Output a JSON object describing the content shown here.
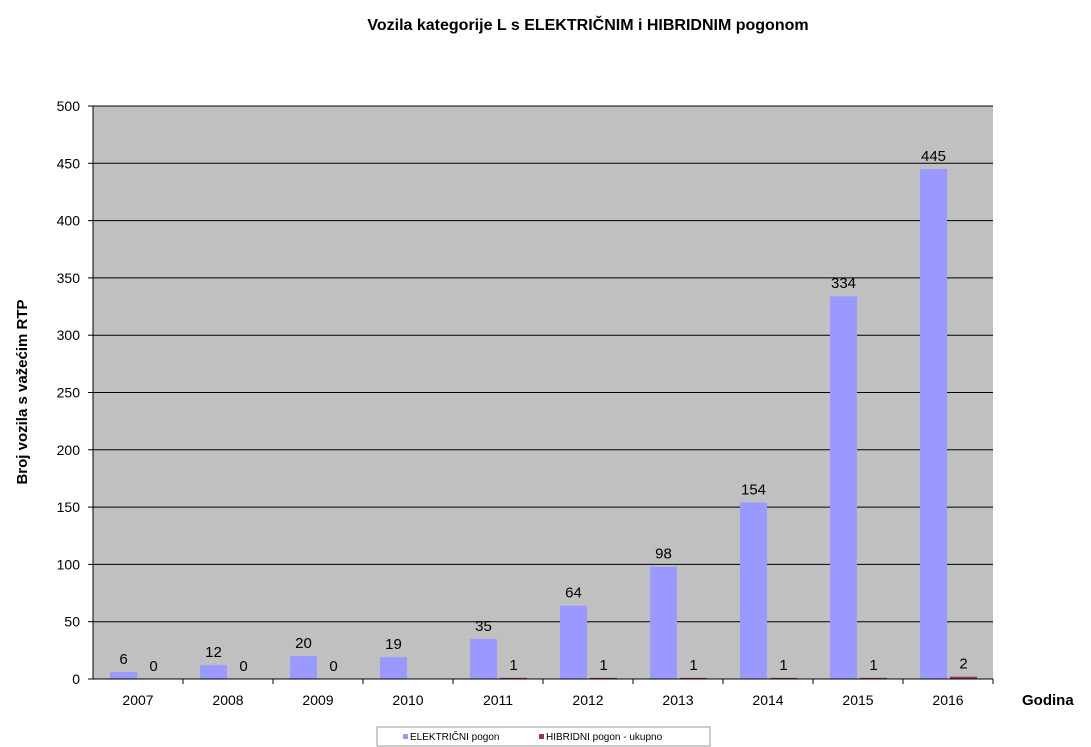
{
  "chart_data": {
    "type": "bar",
    "title": "Vozila kategorije L s ELEKTRIČNIM i HIBRIDNIM pogonom",
    "xlabel": "Godina",
    "ylabel": "Broj vozila s važećim RTP",
    "categories": [
      "2007",
      "2008",
      "2009",
      "2010",
      "2011",
      "2012",
      "2013",
      "2014",
      "2015",
      "2016"
    ],
    "ylim": [
      0,
      500
    ],
    "yticks": [
      0,
      50,
      100,
      150,
      200,
      250,
      300,
      350,
      400,
      450,
      500
    ],
    "grid": true,
    "legend_position": "bottom-center",
    "series": [
      {
        "name": "ELEKTRIČNI pogon",
        "color": "#9999FF",
        "values": [
          6,
          12,
          20,
          19,
          35,
          64,
          98,
          154,
          334,
          445
        ],
        "labels": [
          "6",
          "12",
          "20",
          "19",
          "35",
          "64",
          "98",
          "154",
          "334",
          "445"
        ]
      },
      {
        "name": "HIBRIDNI pogon - ukupno",
        "color": "#993366",
        "values": [
          0,
          0,
          0,
          0,
          1,
          1,
          1,
          1,
          1,
          2
        ],
        "labels": [
          "0",
          "0",
          "0",
          "",
          "1",
          "1",
          "1",
          "1",
          "1",
          "2"
        ]
      }
    ],
    "plot_background": "#C0C0C0"
  }
}
